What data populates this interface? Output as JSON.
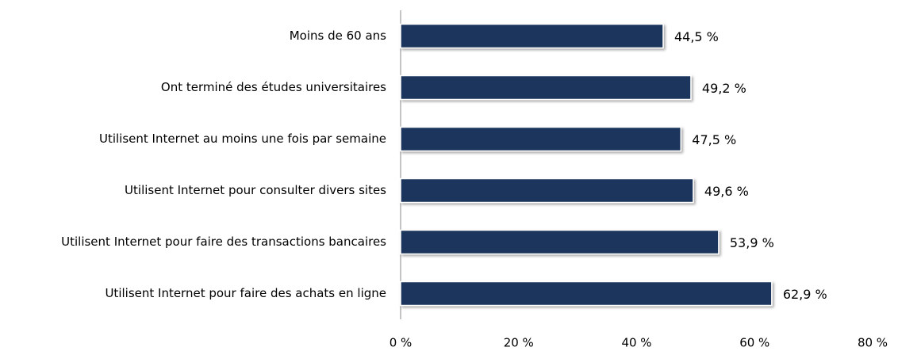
{
  "chart_data": {
    "type": "hbar",
    "categories": [
      "Moins de 60 ans",
      "Ont terminé des études universitaires",
      "Utilisent Internet au moins une fois par semaine",
      "Utilisent Internet pour consulter divers sites",
      "Utilisent Internet pour faire des transactions bancaires",
      "Utilisent Internet pour faire des achats en ligne"
    ],
    "values": [
      44.5,
      49.2,
      47.5,
      49.6,
      53.9,
      62.9
    ],
    "value_labels": [
      "44,5 %",
      "49,2 %",
      "47,5 %",
      "49,6 %",
      "53,9 %",
      "62,9 %"
    ],
    "color": "#1c365c",
    "xlim": [
      0,
      80
    ],
    "xticks": [
      {
        "value": 0,
        "label": "0 %"
      },
      {
        "value": 20,
        "label": "20 %"
      },
      {
        "value": 40,
        "label": "40 %"
      },
      {
        "value": 60,
        "label": "60 %"
      },
      {
        "value": 80,
        "label": "80 %"
      }
    ],
    "grid": false
  }
}
